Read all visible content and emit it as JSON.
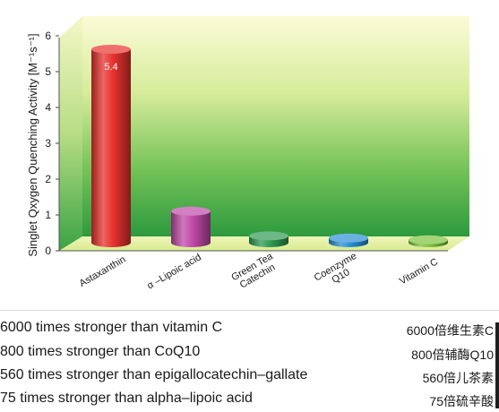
{
  "chart_data": {
    "type": "bar",
    "ylabel": "Singlet Qxygen Quenching Activity [M⁻¹s⁻¹]",
    "ylim": [
      0,
      6
    ],
    "yticks": [
      "0",
      "1",
      "2",
      "3",
      "4",
      "5",
      "6"
    ],
    "categories": [
      "Astaxanthin",
      "α –Lipoic acid",
      "Green Tea Catechin",
      "Coenzyme Q10",
      "Vitamin C"
    ],
    "category_lines": [
      [
        "Astaxanthin"
      ],
      [
        "α –Lipoic acid"
      ],
      [
        "Green Tea",
        "Catechin"
      ],
      [
        "Coenzyme",
        "Q10"
      ],
      [
        "Vitamin C"
      ]
    ],
    "values": [
      5.4,
      0.88,
      0.19,
      0.13,
      0.08
    ],
    "data_labels": [
      "5.4",
      "",
      "",
      "",
      ""
    ],
    "bar_colors": [
      "#e8322e",
      "#c04aa8",
      "#2e9a52",
      "#2a8fd6",
      "#7cc23c"
    ],
    "background": "green-yellow gradient 3D box"
  },
  "comparisons": [
    {
      "english": "6000 times stronger than vitamin C",
      "chinese": "6000倍维生素C"
    },
    {
      "english": "800 times stronger than CoQ10",
      "chinese": "800倍辅酶Q10"
    },
    {
      "english": "560 times stronger than epigallocatechin–gallate",
      "chinese": "560倍儿茶素"
    },
    {
      "english": "75 times stronger than alpha–lipoic acid",
      "chinese": "75倍硫辛酸"
    }
  ]
}
